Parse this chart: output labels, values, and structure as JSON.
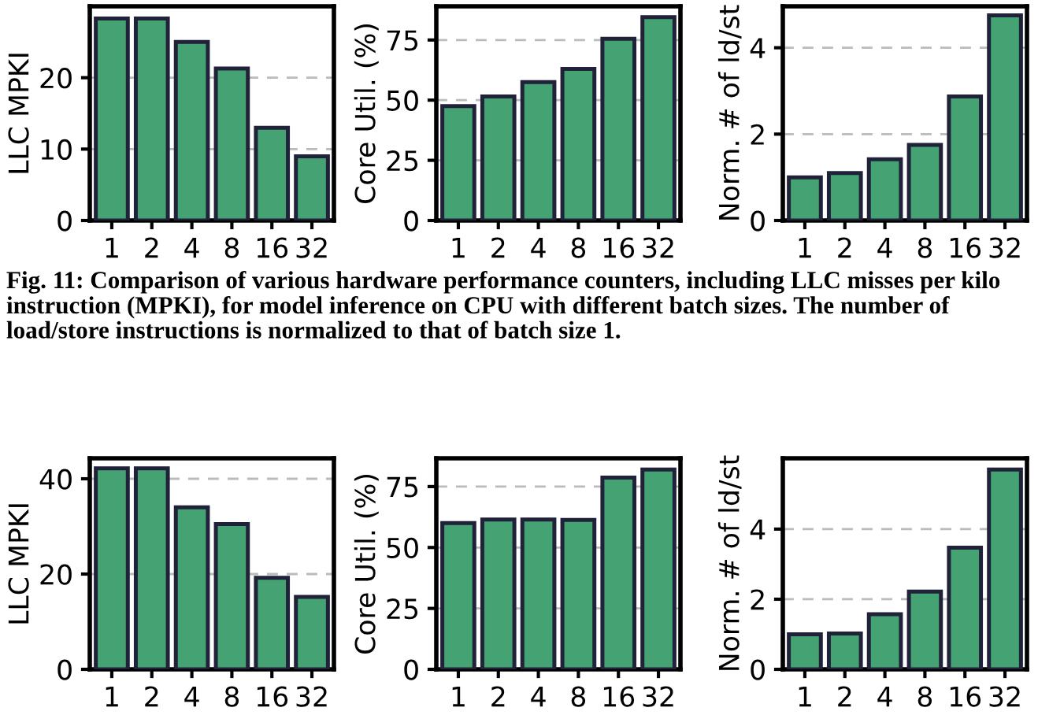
{
  "chart_data": [
    {
      "type": "bar",
      "ylabel": "LLC MPKI",
      "categories": [
        "1",
        "2",
        "4",
        "8",
        "16",
        "32"
      ],
      "values": [
        28.3,
        28.3,
        25,
        21.3,
        13,
        9
      ],
      "color": "#45a373",
      "ylim": [
        0,
        30
      ],
      "yticks": [
        0,
        10,
        20
      ],
      "grid": "y",
      "annotations": [
        "Fig. 11: Comparison of various hardware performance counters, including LLC misses per kilo instruction (MPKI), for model inference on CPU with different batch sizes. The number of load/store instructions is normalized to that of batch size 1."
      ]
    },
    {
      "type": "bar",
      "ylabel": "Core Util. (%)",
      "categories": [
        "1",
        "2",
        "4",
        "8",
        "16",
        "32"
      ],
      "values": [
        47.5,
        51.5,
        57.5,
        63,
        75.5,
        84.5
      ],
      "color": "#45a373",
      "ylim": [
        0,
        89
      ],
      "yticks": [
        0,
        25,
        50,
        75
      ],
      "grid": "y"
    },
    {
      "type": "bar",
      "ylabel": "Norm. # of ld/st",
      "categories": [
        "1",
        "2",
        "4",
        "8",
        "16",
        "32"
      ],
      "values": [
        1,
        1.1,
        1.42,
        1.75,
        2.87,
        4.75
      ],
      "color": "#45a373",
      "ylim": [
        0,
        4.96
      ],
      "yticks": [
        0,
        2,
        4
      ],
      "grid": "y"
    },
    {
      "type": "bar",
      "ylabel": "LLC MPKI",
      "categories": [
        "1",
        "2",
        "4",
        "8",
        "16",
        "32"
      ],
      "values": [
        42.2,
        42.2,
        34,
        30.5,
        19.2,
        15.2
      ],
      "color": "#45a373",
      "ylim": [
        0,
        44.3
      ],
      "yticks": [
        0,
        20,
        40
      ],
      "grid": "y"
    },
    {
      "type": "bar",
      "ylabel": "Core Util. (%)",
      "categories": [
        "1",
        "2",
        "4",
        "8",
        "16",
        "32"
      ],
      "values": [
        60,
        61.5,
        61.5,
        61.3,
        78.7,
        82
      ],
      "color": "#45a373",
      "ylim": [
        0,
        86.6
      ],
      "yticks": [
        0,
        25,
        50,
        75
      ],
      "grid": "y"
    },
    {
      "type": "bar",
      "ylabel": "Norm. # of ld/st",
      "categories": [
        "1",
        "2",
        "4",
        "8",
        "16",
        "32"
      ],
      "values": [
        1,
        1.02,
        1.57,
        2.22,
        3.47,
        5.7
      ],
      "color": "#45a373",
      "ylim": [
        0,
        6.02
      ],
      "yticks": [
        0,
        2,
        4
      ],
      "grid": "y"
    }
  ]
}
